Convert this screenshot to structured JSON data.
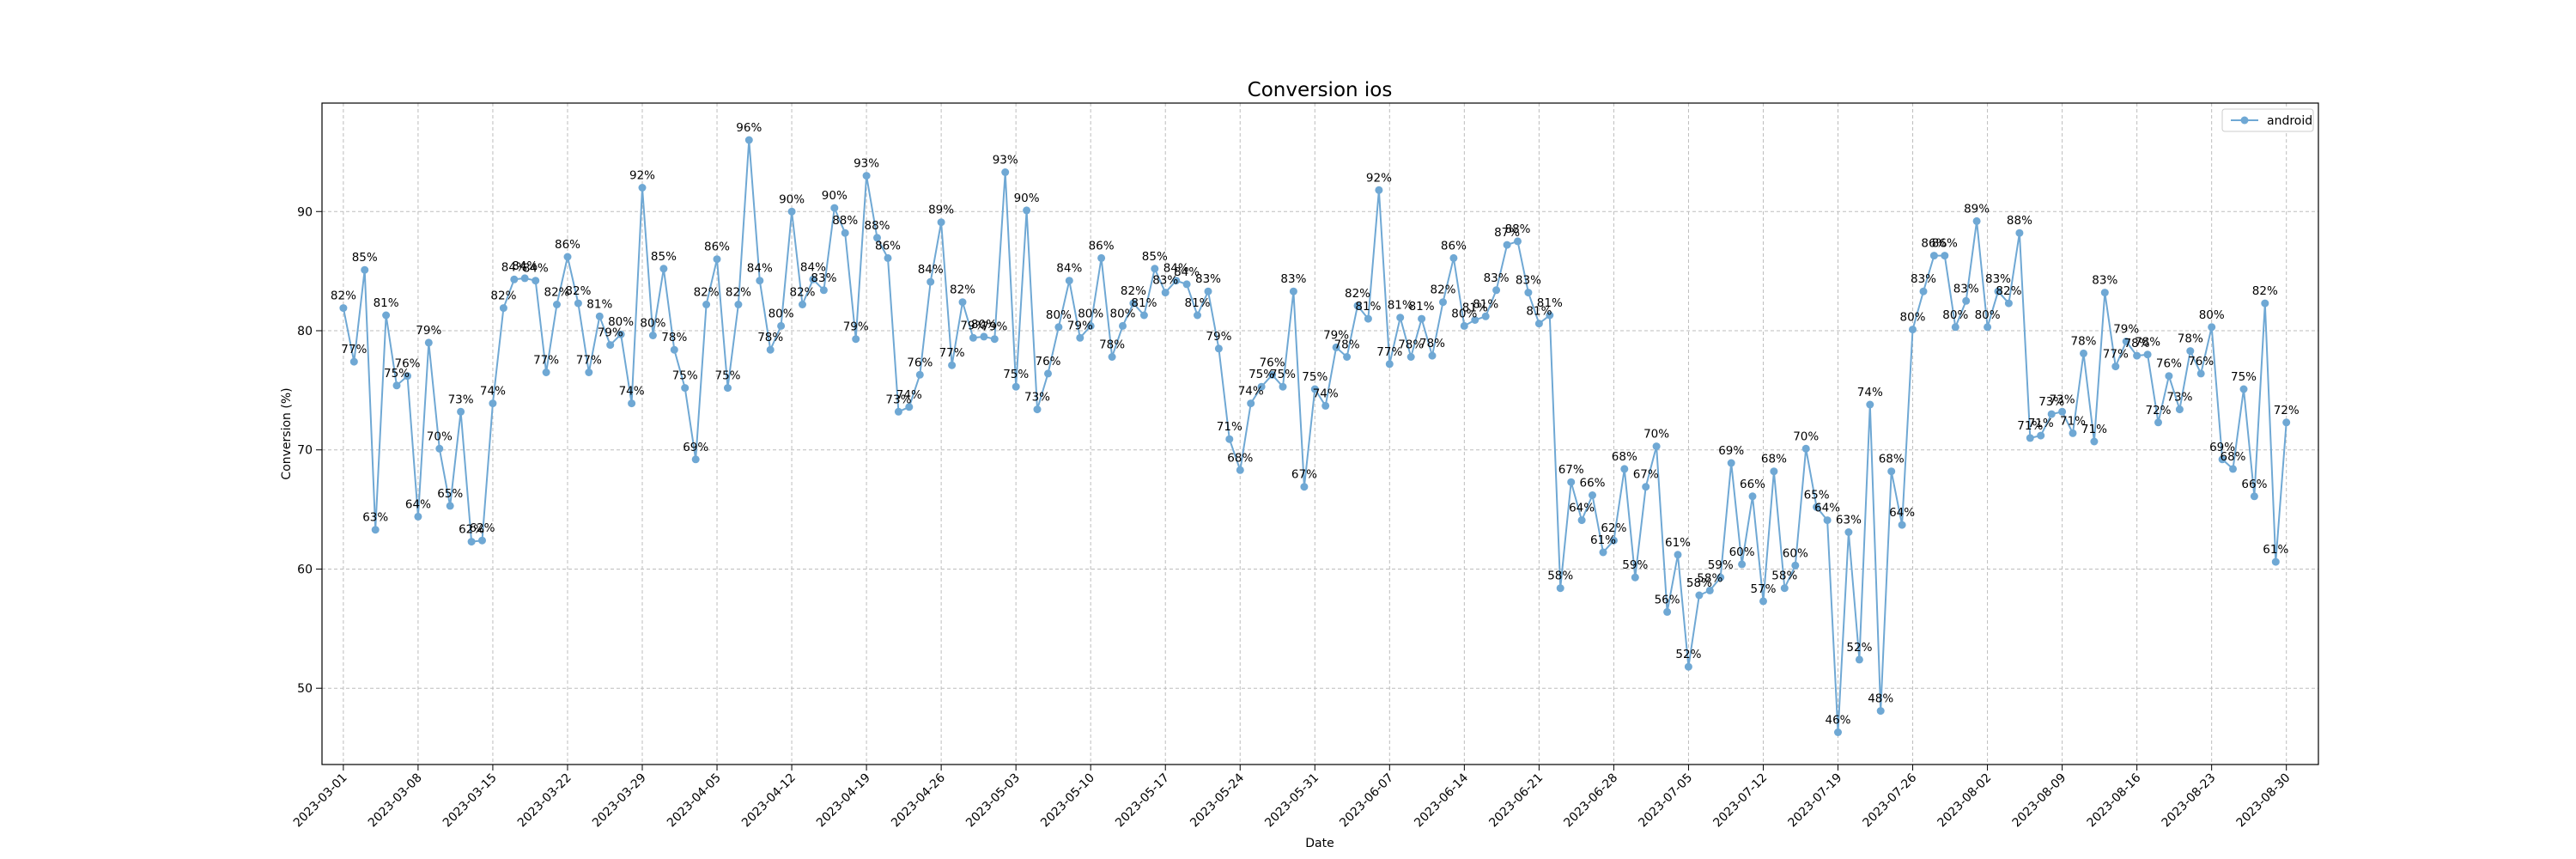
{
  "chart_data": {
    "type": "line",
    "title": "Conversion ios",
    "xlabel": "Date",
    "ylabel": "Conversion (%)",
    "ylim": [
      43.6,
      99.1
    ],
    "yticks": [
      50,
      60,
      70,
      80,
      90
    ],
    "xlim": [
      "2023-02-27",
      "2023-09-02"
    ],
    "xticks": [
      "2023-03-01",
      "2023-03-08",
      "2023-03-15",
      "2023-03-22",
      "2023-03-29",
      "2023-04-05",
      "2023-04-12",
      "2023-04-19",
      "2023-04-26",
      "2023-05-03",
      "2023-05-10",
      "2023-05-17",
      "2023-05-24",
      "2023-05-31",
      "2023-06-07",
      "2023-06-14",
      "2023-06-21",
      "2023-06-28",
      "2023-07-05",
      "2023-07-12",
      "2023-07-19",
      "2023-07-26",
      "2023-08-02",
      "2023-08-09",
      "2023-08-16",
      "2023-08-23",
      "2023-08-30"
    ],
    "grid": true,
    "legend": {
      "position": "top-right"
    },
    "color": "#6fa8d4",
    "series": [
      {
        "name": "android",
        "start": "2023-03-01",
        "values": [
          81.9,
          77.4,
          85.1,
          63.3,
          81.3,
          75.4,
          76.2,
          64.4,
          79.0,
          70.1,
          65.3,
          73.2,
          62.3,
          62.4,
          73.9,
          81.9,
          84.3,
          84.4,
          84.2,
          76.5,
          82.2,
          86.2,
          82.3,
          76.5,
          81.2,
          78.8,
          79.7,
          73.9,
          92.0,
          79.6,
          85.2,
          78.4,
          75.2,
          69.2,
          82.2,
          86.0,
          75.2,
          82.2,
          96.0,
          84.2,
          78.4,
          80.4,
          90.0,
          82.2,
          84.3,
          83.4,
          90.3,
          88.2,
          79.3,
          93.0,
          87.8,
          86.1,
          73.2,
          73.6,
          76.3,
          84.1,
          89.1,
          77.1,
          82.4,
          79.4,
          79.5,
          79.3,
          93.3,
          75.3,
          90.1,
          73.4,
          76.4,
          80.3,
          84.2,
          79.4,
          80.4,
          86.1,
          77.8,
          80.4,
          82.3,
          81.3,
          85.2,
          83.2,
          84.2,
          83.9,
          81.3,
          83.3,
          78.5,
          70.9,
          68.3,
          73.9,
          75.3,
          76.3,
          75.3,
          83.3,
          66.9,
          75.1,
          73.7,
          78.6,
          77.8,
          82.1,
          81.0,
          91.8,
          77.2,
          81.1,
          77.8,
          81.0,
          77.9,
          82.4,
          86.1,
          80.4,
          80.9,
          81.2,
          83.4,
          87.2,
          87.5,
          83.2,
          80.6,
          81.3,
          58.4,
          67.3,
          64.1,
          66.2,
          61.4,
          62.4,
          68.4,
          59.3,
          66.9,
          70.3,
          56.4,
          61.2,
          51.8,
          57.8,
          58.2,
          59.3,
          68.9,
          60.4,
          66.1,
          57.3,
          68.2,
          58.4,
          60.3,
          70.1,
          65.2,
          64.1,
          46.3,
          63.1,
          52.4,
          73.8,
          48.1,
          68.2,
          63.7,
          80.1,
          83.3,
          86.3,
          86.3,
          80.3,
          82.5,
          89.2,
          80.3,
          83.3,
          82.3,
          88.2,
          71.0,
          71.2,
          73.0,
          73.2,
          71.4,
          78.1,
          70.7,
          83.2,
          77.0,
          79.1,
          77.9,
          78.0,
          72.3,
          76.2,
          73.4,
          78.3,
          76.4,
          80.3,
          69.2,
          68.4,
          75.1,
          66.1,
          82.3,
          60.6,
          72.3
        ]
      }
    ]
  }
}
